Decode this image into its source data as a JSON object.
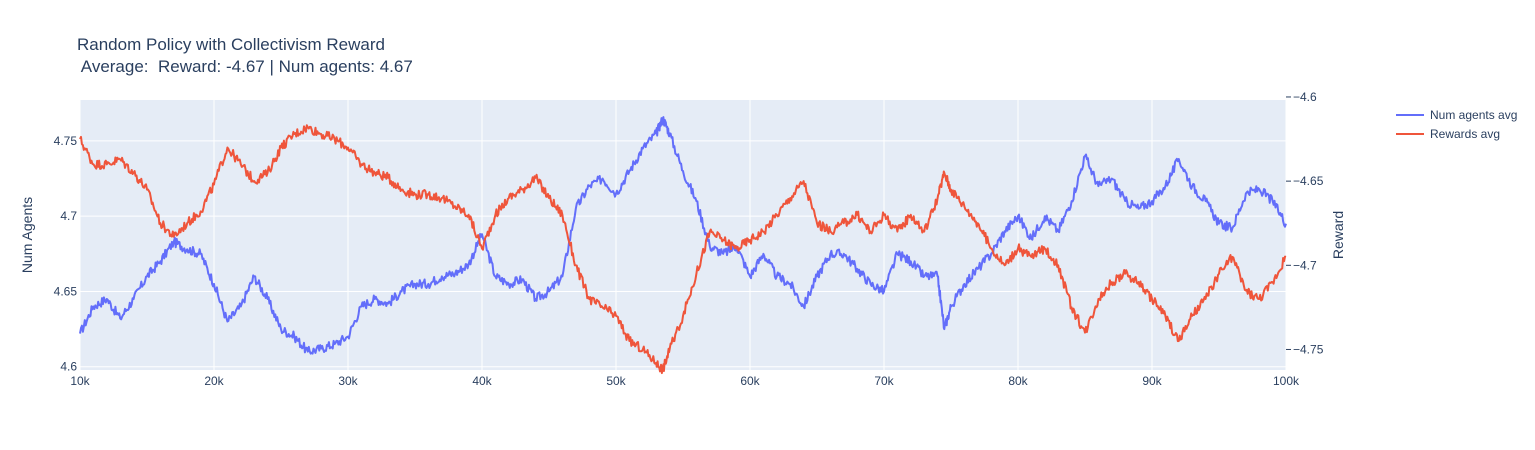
{
  "chart_data": {
    "type": "line",
    "title_line1": "Random Policy with Collectivism Reward",
    "title_line2": " Average:  Reward: -4.67 | Num agents: 4.67",
    "xlabel": "",
    "ylabel_left": "Num Agents",
    "ylabel_right": "Reward",
    "xlim": [
      10000,
      100000
    ],
    "ylim_left": [
      4.5978,
      4.7772
    ],
    "ylim_right": [
      -4.7622,
      -4.6018
    ],
    "x_ticks": [
      10000,
      20000,
      30000,
      40000,
      50000,
      60000,
      70000,
      80000,
      90000,
      100000
    ],
    "x_tick_labels": [
      "10k",
      "20k",
      "30k",
      "40k",
      "50k",
      "60k",
      "70k",
      "80k",
      "90k",
      "100k"
    ],
    "y_left_ticks": [
      4.6,
      4.65,
      4.7,
      4.75
    ],
    "y_left_tick_labels": [
      "4.6",
      "4.65",
      "4.7",
      "4.75"
    ],
    "y_right_ticks": [
      -4.75,
      -4.7,
      -4.65,
      -4.6
    ],
    "y_right_tick_labels": [
      "−4.75",
      "−4.7",
      "−4.65",
      "−4.6"
    ],
    "grid": true,
    "legend_position": "top-right outside",
    "series": [
      {
        "name": "Num agents avg",
        "axis": "left",
        "color": "#636efa",
        "x": [
          10000,
          11000,
          12000,
          13000,
          14000,
          15000,
          16000,
          17000,
          18000,
          19000,
          20000,
          21000,
          22000,
          23000,
          24000,
          25000,
          26000,
          27000,
          28000,
          29000,
          30000,
          31000,
          32000,
          33000,
          34000,
          35000,
          36000,
          37000,
          38000,
          39000,
          40000,
          41000,
          42000,
          43000,
          44000,
          45000,
          46000,
          47000,
          48000,
          49000,
          50000,
          51000,
          52000,
          53000,
          53500,
          54000,
          55000,
          56000,
          57000,
          58000,
          59000,
          60000,
          61000,
          62000,
          63000,
          64000,
          65000,
          66000,
          67000,
          68000,
          69000,
          70000,
          71000,
          72000,
          73000,
          74000,
          74500,
          75000,
          76000,
          77000,
          78000,
          79000,
          80000,
          81000,
          82000,
          83000,
          84000,
          85000,
          86000,
          87000,
          88000,
          89000,
          90000,
          91000,
          92000,
          93000,
          94000,
          95000,
          96000,
          97000,
          98000,
          99000,
          100000
        ],
        "y": [
          4.622,
          4.64,
          4.645,
          4.632,
          4.645,
          4.66,
          4.67,
          4.683,
          4.678,
          4.675,
          4.655,
          4.63,
          4.64,
          4.66,
          4.645,
          4.625,
          4.62,
          4.61,
          4.612,
          4.615,
          4.62,
          4.64,
          4.645,
          4.642,
          4.65,
          4.655,
          4.655,
          4.66,
          4.662,
          4.668,
          4.688,
          4.66,
          4.655,
          4.658,
          4.645,
          4.65,
          4.66,
          4.705,
          4.72,
          4.725,
          4.715,
          4.73,
          4.745,
          4.755,
          4.765,
          4.755,
          4.73,
          4.71,
          4.68,
          4.675,
          4.68,
          4.66,
          4.675,
          4.66,
          4.655,
          4.64,
          4.66,
          4.675,
          4.675,
          4.665,
          4.655,
          4.65,
          4.675,
          4.67,
          4.66,
          4.66,
          4.625,
          4.64,
          4.655,
          4.665,
          4.675,
          4.69,
          4.7,
          4.685,
          4.7,
          4.69,
          4.71,
          4.74,
          4.72,
          4.725,
          4.71,
          4.705,
          4.71,
          4.72,
          4.738,
          4.72,
          4.71,
          4.695,
          4.692,
          4.715,
          4.718,
          4.71,
          4.695
        ]
      },
      {
        "name": "Rewards avg",
        "axis": "right",
        "color": "#ef553b",
        "x": [
          10000,
          11000,
          12000,
          13000,
          14000,
          15000,
          16000,
          17000,
          18000,
          19000,
          20000,
          21000,
          22000,
          23000,
          24000,
          25000,
          26000,
          27000,
          28000,
          29000,
          30000,
          31000,
          32000,
          33000,
          34000,
          35000,
          36000,
          37000,
          38000,
          39000,
          40000,
          41000,
          42000,
          43000,
          44000,
          45000,
          46000,
          47000,
          48000,
          49000,
          50000,
          51000,
          52000,
          53000,
          53500,
          54000,
          55000,
          56000,
          57000,
          58000,
          59000,
          60000,
          61000,
          62000,
          63000,
          64000,
          65000,
          66000,
          67000,
          68000,
          69000,
          70000,
          71000,
          72000,
          73000,
          74000,
          74500,
          75000,
          76000,
          77000,
          78000,
          79000,
          80000,
          81000,
          82000,
          83000,
          84000,
          85000,
          86000,
          87000,
          88000,
          89000,
          90000,
          91000,
          92000,
          93000,
          94000,
          95000,
          96000,
          97000,
          98000,
          99000,
          100000
        ],
        "y": [
          -4.625,
          -4.64,
          -4.64,
          -4.637,
          -4.645,
          -4.655,
          -4.675,
          -4.683,
          -4.675,
          -4.668,
          -4.652,
          -4.63,
          -4.64,
          -4.65,
          -4.645,
          -4.63,
          -4.622,
          -4.618,
          -4.622,
          -4.625,
          -4.63,
          -4.64,
          -4.645,
          -4.648,
          -4.655,
          -4.658,
          -4.658,
          -4.66,
          -4.665,
          -4.67,
          -4.69,
          -4.67,
          -4.66,
          -4.655,
          -4.648,
          -4.66,
          -4.67,
          -4.7,
          -4.72,
          -4.725,
          -4.73,
          -4.745,
          -4.75,
          -4.758,
          -4.762,
          -4.75,
          -4.73,
          -4.705,
          -4.68,
          -4.685,
          -4.69,
          -4.685,
          -4.68,
          -4.67,
          -4.66,
          -4.65,
          -4.675,
          -4.68,
          -4.675,
          -4.67,
          -4.68,
          -4.67,
          -4.68,
          -4.67,
          -4.68,
          -4.66,
          -4.645,
          -4.655,
          -4.665,
          -4.675,
          -4.69,
          -4.7,
          -4.69,
          -4.695,
          -4.69,
          -4.7,
          -4.725,
          -4.74,
          -4.72,
          -4.71,
          -4.705,
          -4.71,
          -4.72,
          -4.73,
          -4.745,
          -4.73,
          -4.72,
          -4.705,
          -4.695,
          -4.715,
          -4.72,
          -4.71,
          -4.695
        ]
      }
    ]
  }
}
